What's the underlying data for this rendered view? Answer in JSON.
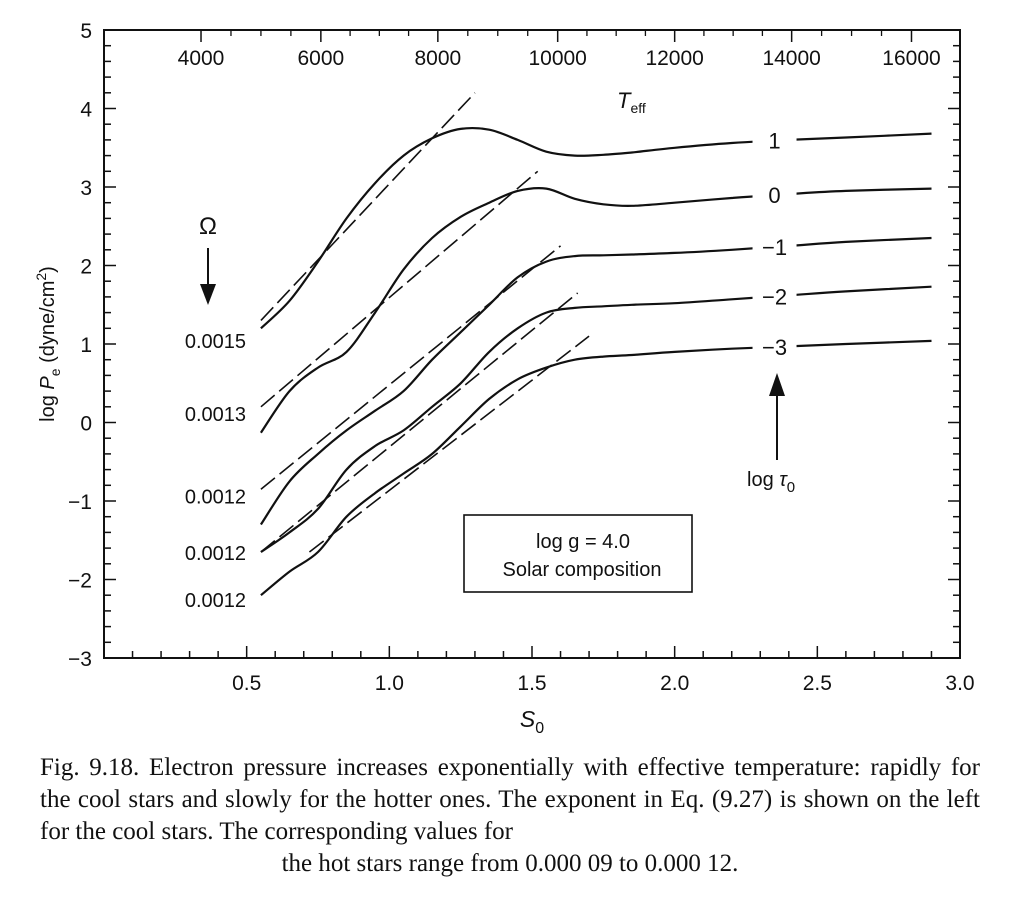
{
  "chart_data": {
    "type": "line",
    "xlabel": "S",
    "xlabel_sub": "0",
    "ylabel_prefix": "log ",
    "ylabel_var": "P",
    "ylabel_sub": "e",
    "ylabel_unit": " (dyne/cm",
    "ylabel_sup": "2",
    "ylabel_close": ")",
    "xlim": [
      0,
      3.0
    ],
    "ylim": [
      -3,
      5
    ],
    "x_ticks": [
      {
        "v": 0.5,
        "label": "0.5"
      },
      {
        "v": 1.0,
        "label": "1.0"
      },
      {
        "v": 1.5,
        "label": "1.5"
      },
      {
        "v": 2.0,
        "label": "2.0"
      },
      {
        "v": 2.5,
        "label": "2.5"
      },
      {
        "v": 3.0,
        "label": "3.0"
      }
    ],
    "y_ticks": [
      {
        "v": 5,
        "label": "5"
      },
      {
        "v": 4,
        "label": "4"
      },
      {
        "v": 3,
        "label": "3"
      },
      {
        "v": 2,
        "label": "2"
      },
      {
        "v": 1,
        "label": "1"
      },
      {
        "v": 0,
        "label": "0"
      },
      {
        "v": -1,
        "label": "−1"
      },
      {
        "v": -2,
        "label": "−2"
      },
      {
        "v": -3,
        "label": "−3"
      }
    ],
    "top_axis": {
      "label": "T",
      "label_sub": "eff",
      "ticks": [
        {
          "s0": 0.34,
          "label": "4000"
        },
        {
          "s0": 0.76,
          "label": "6000"
        },
        {
          "s0": 1.17,
          "label": "8000"
        },
        {
          "s0": 1.59,
          "label": "10000"
        },
        {
          "s0": 2.0,
          "label": "12000"
        },
        {
          "s0": 2.41,
          "label": "14000"
        },
        {
          "s0": 2.83,
          "label": "16000"
        }
      ]
    },
    "series": [
      {
        "name": "1",
        "x": [
          0.55,
          0.65,
          0.75,
          0.85,
          0.95,
          1.05,
          1.15,
          1.25,
          1.35,
          1.45,
          1.55,
          1.65,
          1.75,
          1.85,
          2.0,
          2.2,
          2.4,
          2.6,
          2.9
        ],
        "y": [
          1.2,
          1.55,
          2.05,
          2.6,
          3.05,
          3.4,
          3.62,
          3.74,
          3.73,
          3.6,
          3.45,
          3.4,
          3.41,
          3.44,
          3.5,
          3.56,
          3.6,
          3.63,
          3.68
        ]
      },
      {
        "name": "0",
        "x": [
          0.55,
          0.65,
          0.75,
          0.85,
          0.95,
          1.05,
          1.15,
          1.25,
          1.35,
          1.45,
          1.55,
          1.65,
          1.75,
          1.85,
          2.0,
          2.2,
          2.4,
          2.6,
          2.9
        ],
        "y": [
          -0.13,
          0.4,
          0.7,
          0.9,
          1.4,
          1.95,
          2.35,
          2.62,
          2.8,
          2.95,
          2.98,
          2.85,
          2.78,
          2.76,
          2.8,
          2.86,
          2.91,
          2.95,
          2.98
        ]
      },
      {
        "name": "−1",
        "x": [
          0.55,
          0.65,
          0.75,
          0.85,
          0.95,
          1.05,
          1.15,
          1.25,
          1.35,
          1.45,
          1.55,
          1.65,
          1.75,
          1.85,
          2.0,
          2.2,
          2.4,
          2.6,
          2.9
        ],
        "y": [
          -1.3,
          -0.75,
          -0.4,
          -0.1,
          0.15,
          0.4,
          0.8,
          1.15,
          1.5,
          1.85,
          2.05,
          2.12,
          2.13,
          2.14,
          2.16,
          2.2,
          2.25,
          2.3,
          2.35
        ]
      },
      {
        "name": "−2",
        "x": [
          0.55,
          0.65,
          0.75,
          0.85,
          0.95,
          1.05,
          1.15,
          1.25,
          1.35,
          1.45,
          1.55,
          1.65,
          1.75,
          1.85,
          2.0,
          2.2,
          2.4,
          2.6,
          2.9
        ],
        "y": [
          -1.65,
          -1.4,
          -1.1,
          -0.6,
          -0.3,
          -0.1,
          0.2,
          0.5,
          0.9,
          1.2,
          1.4,
          1.46,
          1.48,
          1.5,
          1.52,
          1.57,
          1.62,
          1.67,
          1.73
        ]
      },
      {
        "name": "−3",
        "x": [
          0.55,
          0.65,
          0.75,
          0.85,
          0.95,
          1.05,
          1.15,
          1.25,
          1.35,
          1.45,
          1.55,
          1.65,
          1.75,
          1.85,
          2.0,
          2.2,
          2.4,
          2.6,
          2.9
        ],
        "y": [
          -2.2,
          -1.9,
          -1.65,
          -1.2,
          -0.9,
          -0.65,
          -0.4,
          -0.05,
          0.3,
          0.55,
          0.7,
          0.8,
          0.84,
          0.86,
          0.9,
          0.94,
          0.97,
          1.0,
          1.04
        ]
      }
    ],
    "fits": [
      {
        "x": [
          0.55,
          1.3
        ],
        "y": [
          1.3,
          4.2
        ]
      },
      {
        "x": [
          0.55,
          1.52
        ],
        "y": [
          0.2,
          3.2
        ]
      },
      {
        "x": [
          0.55,
          1.6
        ],
        "y": [
          -0.85,
          2.25
        ]
      },
      {
        "x": [
          0.55,
          1.66
        ],
        "y": [
          -1.65,
          1.65
        ]
      },
      {
        "x": [
          0.72,
          1.7
        ],
        "y": [
          -1.65,
          1.1
        ]
      }
    ],
    "omega": {
      "label": "Ω",
      "values": [
        {
          "label": "0.0015",
          "y": 1.05
        },
        {
          "label": "0.0013",
          "y": 0.12
        },
        {
          "label": "0.0012",
          "y": -0.93
        },
        {
          "label": "0.0012",
          "y": -1.65
        },
        {
          "label": "0.0012",
          "y": -2.25
        }
      ]
    },
    "tau_label": {
      "prefix": "log ",
      "var": "τ",
      "sub": "0"
    },
    "annotation": {
      "line1": "log g = 4.0",
      "line2": "Solar composition"
    }
  },
  "caption": {
    "body": "Fig. 9.18.    Electron pressure increases exponentially with effective temperature: rapidly for the cool stars and slowly for the hotter ones. The exponent in Eq. (9.27) is shown on the left for the cool stars. The corresponding values for",
    "last": "the hot stars range from 0.000 09 to 0.000 12."
  }
}
